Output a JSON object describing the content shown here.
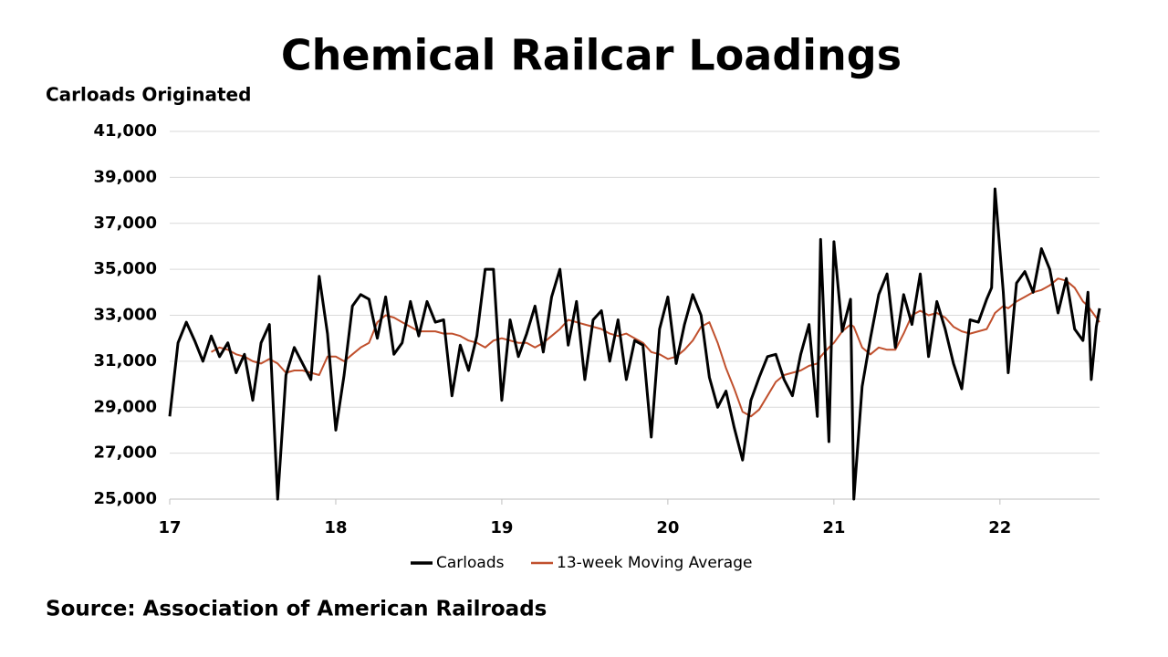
{
  "chart_data": {
    "type": "line",
    "title": "Chemical Railcar Loadings",
    "y_label": "Carloads Originated",
    "source": "Source: Association of American Railroads",
    "x": [
      17.0,
      17.05,
      17.1,
      17.15,
      17.2,
      17.25,
      17.3,
      17.35,
      17.4,
      17.45,
      17.5,
      17.55,
      17.6,
      17.65,
      17.7,
      17.75,
      17.8,
      17.85,
      17.9,
      17.95,
      18.0,
      18.05,
      18.1,
      18.15,
      18.2,
      18.25,
      18.3,
      18.35,
      18.4,
      18.45,
      18.5,
      18.55,
      18.6,
      18.65,
      18.7,
      18.75,
      18.8,
      18.85,
      18.9,
      18.95,
      19.0,
      19.05,
      19.1,
      19.15,
      19.2,
      19.25,
      19.3,
      19.35,
      19.4,
      19.45,
      19.5,
      19.55,
      19.6,
      19.65,
      19.7,
      19.75,
      19.8,
      19.85,
      19.9,
      19.95,
      20.0,
      20.05,
      20.1,
      20.15,
      20.2,
      20.25,
      20.3,
      20.35,
      20.4,
      20.45,
      20.5,
      20.55,
      20.6,
      20.65,
      20.7,
      20.75,
      20.8,
      20.85,
      20.9,
      20.92,
      20.97,
      21.0,
      21.05,
      21.1,
      21.12,
      21.17,
      21.22,
      21.27,
      21.32,
      21.37,
      21.42,
      21.47,
      21.52,
      21.57,
      21.62,
      21.67,
      21.72,
      21.77,
      21.82,
      21.87,
      21.92,
      21.95,
      21.97,
      22.02,
      22.05,
      22.1,
      22.15,
      22.2,
      22.25,
      22.3,
      22.35,
      22.4,
      22.45,
      22.5,
      22.53,
      22.55,
      22.58,
      22.6
    ],
    "series": [
      {
        "name": "Carloads",
        "color": "#000000",
        "width": 3,
        "values": [
          28600,
          31800,
          32700,
          31900,
          31000,
          32100,
          31200,
          31800,
          30500,
          31300,
          29300,
          31800,
          32600,
          25000,
          30400,
          31600,
          30900,
          30200,
          34700,
          32200,
          28000,
          30400,
          33400,
          33900,
          33700,
          32000,
          33800,
          31300,
          31800,
          33600,
          32100,
          33600,
          32700,
          32800,
          29500,
          31700,
          30600,
          32100,
          35000,
          35000,
          29300,
          32800,
          31200,
          32200,
          33400,
          31400,
          33800,
          35000,
          31700,
          33600,
          30200,
          32800,
          33200,
          31000,
          32800,
          30200,
          31900,
          31700,
          27700,
          32400,
          33800,
          30900,
          32600,
          33900,
          33000,
          30300,
          29000,
          29700,
          28100,
          26700,
          29300,
          30300,
          31200,
          31300,
          30200,
          29500,
          31300,
          32600,
          28600,
          36300,
          27500,
          36200,
          32300,
          33700,
          25000,
          29900,
          32000,
          33900,
          34800,
          31600,
          33900,
          32600,
          34800,
          31200,
          33600,
          32400,
          30900,
          29800,
          32800,
          32700,
          33700,
          34200,
          38500,
          34000,
          30500,
          34400,
          34900,
          34000,
          35900,
          35000,
          33100,
          34600,
          32400,
          31900,
          34000,
          30200,
          32500,
          33300
        ]
      },
      {
        "name": "13-week Moving Average",
        "color": "#c0502d",
        "width": 2,
        "values": [
          null,
          null,
          null,
          null,
          null,
          31400,
          31600,
          31500,
          31300,
          31200,
          31000,
          30900,
          31100,
          30900,
          30500,
          30600,
          30600,
          30500,
          30400,
          31200,
          31200,
          31000,
          31300,
          31600,
          31800,
          32700,
          33000,
          32900,
          32700,
          32500,
          32300,
          32300,
          32300,
          32200,
          32200,
          32100,
          31900,
          31800,
          31600,
          31900,
          32000,
          31900,
          31800,
          31800,
          31600,
          31800,
          32100,
          32400,
          32800,
          32700,
          32600,
          32500,
          32400,
          32200,
          32100,
          32200,
          32000,
          31800,
          31400,
          31300,
          31100,
          31200,
          31500,
          31900,
          32500,
          32700,
          31800,
          30700,
          29800,
          28800,
          28600,
          28900,
          29500,
          30100,
          30400,
          30500,
          30600,
          30800,
          30900,
          31200,
          31600,
          31800,
          32300,
          32600,
          32500,
          31600,
          31300,
          31600,
          31500,
          31500,
          32200,
          33000,
          33200,
          33000,
          33100,
          32900,
          32500,
          32300,
          32200,
          32300,
          32400,
          32800,
          33100,
          33400,
          33300,
          33600,
          33800,
          34000,
          34100,
          34300,
          34600,
          34500,
          34200,
          33600,
          33400,
          33200,
          32900,
          32700
        ]
      }
    ],
    "xlim": [
      17,
      22.6
    ],
    "xticks": [
      17,
      18,
      19,
      20,
      21,
      22
    ],
    "ylim": [
      25000,
      41000
    ],
    "yticks": [
      {
        "value": 25000,
        "label": "25,000"
      },
      {
        "value": 27000,
        "label": "27,000"
      },
      {
        "value": 29000,
        "label": "29,000"
      },
      {
        "value": 31000,
        "label": "31,000"
      },
      {
        "value": 33000,
        "label": "33,000"
      },
      {
        "value": 35000,
        "label": "35,000"
      },
      {
        "value": 37000,
        "label": "37,000"
      },
      {
        "value": 39000,
        "label": "39,000"
      },
      {
        "value": 41000,
        "label": "41,000"
      }
    ],
    "grid": true,
    "legend": "bottom"
  }
}
